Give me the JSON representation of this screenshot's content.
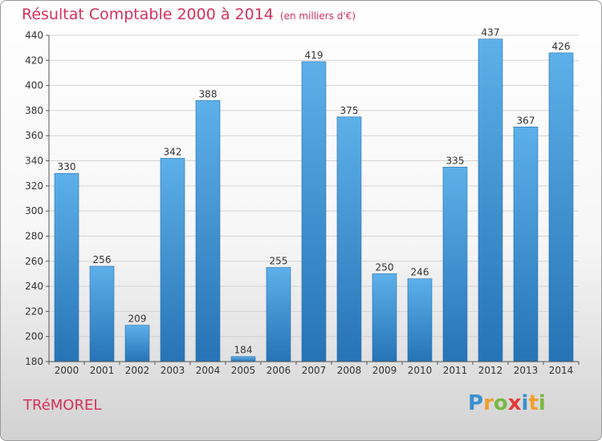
{
  "chart_data": {
    "type": "bar",
    "title": "Résultat Comptable 2000 à 2014",
    "subtitle": "(en milliers d'€)",
    "categories": [
      "2000",
      "2001",
      "2002",
      "2003",
      "2004",
      "2005",
      "2006",
      "2007",
      "2008",
      "2009",
      "2010",
      "2011",
      "2012",
      "2013",
      "2014"
    ],
    "values": [
      330,
      256,
      209,
      342,
      388,
      184,
      255,
      419,
      375,
      250,
      246,
      335,
      437,
      367,
      426
    ],
    "xlabel": "",
    "ylabel": "",
    "ylim": [
      180,
      440
    ],
    "yticks": [
      180,
      200,
      220,
      240,
      260,
      280,
      300,
      320,
      340,
      360,
      380,
      400,
      420,
      440
    ],
    "grid": true,
    "bar_color": "#3b8fd6"
  },
  "location": "TRéMOREL",
  "logo": {
    "letters": [
      "P",
      "r",
      "o",
      "x",
      "i",
      "t",
      "i"
    ],
    "colors": [
      "#3a8fd0",
      "#f0a030",
      "#7ab843",
      "#e23a3a",
      "#3a8fd0",
      "#f0a030",
      "#7ab843"
    ]
  }
}
